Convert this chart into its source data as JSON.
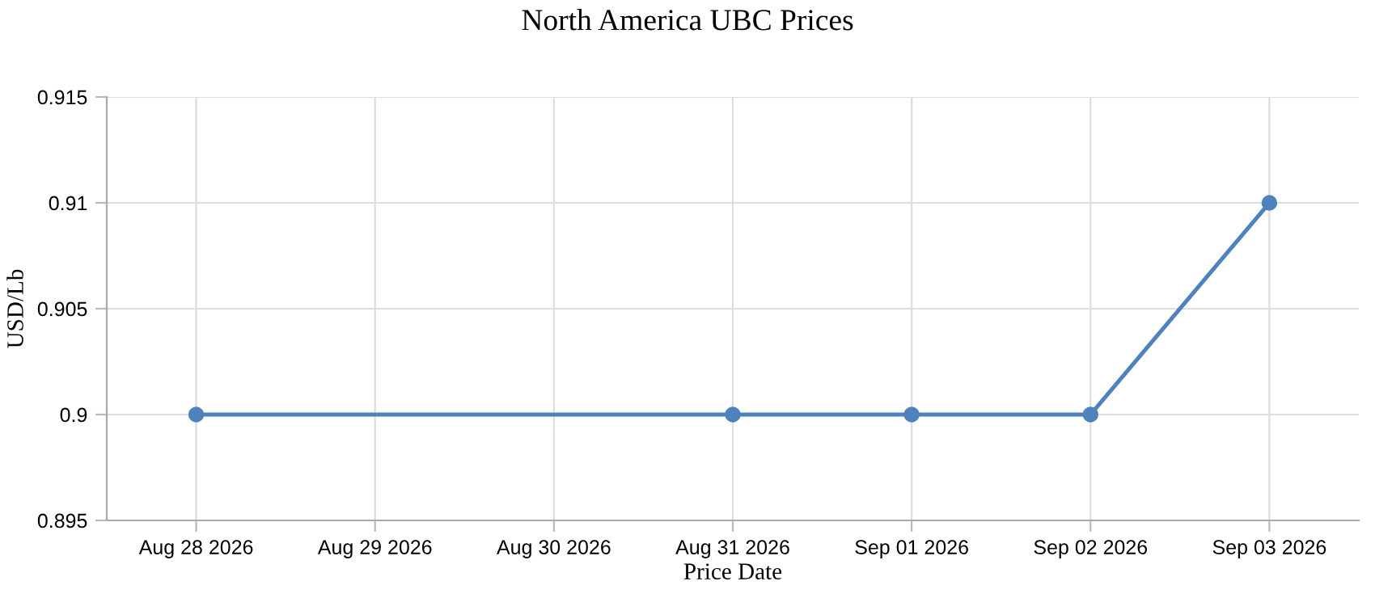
{
  "chart_data": {
    "type": "line",
    "title": "North America UBC Prices",
    "xlabel": "Price Date",
    "ylabel": "USD/Lb",
    "x": [
      "2026-08-28",
      "2026-08-31",
      "2026-09-01",
      "2026-09-02",
      "2026-09-03"
    ],
    "series": [
      {
        "color": "#4f81bc",
        "values": [
          0.9,
          0.9,
          0.9,
          0.9,
          0.91
        ]
      }
    ],
    "xlim": [
      "2026-08-27T12:00",
      "2026-09-03T12:00"
    ],
    "xticks": [
      {
        "value": "2026-08-28",
        "label": "Aug 28 2026"
      },
      {
        "value": "2026-08-29",
        "label": "Aug 29 2026"
      },
      {
        "value": "2026-08-30",
        "label": "Aug 30 2026"
      },
      {
        "value": "2026-08-31",
        "label": "Aug 31 2026"
      },
      {
        "value": "2026-09-01",
        "label": "Sep 01 2026"
      },
      {
        "value": "2026-09-02",
        "label": "Sep 02 2026"
      },
      {
        "value": "2026-09-03",
        "label": "Sep 03 2026"
      }
    ],
    "ylim": [
      0.895,
      0.915
    ],
    "yticks": [
      0.895,
      0.9,
      0.905,
      0.91,
      0.915
    ],
    "grid": true,
    "marker": "circle",
    "line_style": "solid"
  }
}
